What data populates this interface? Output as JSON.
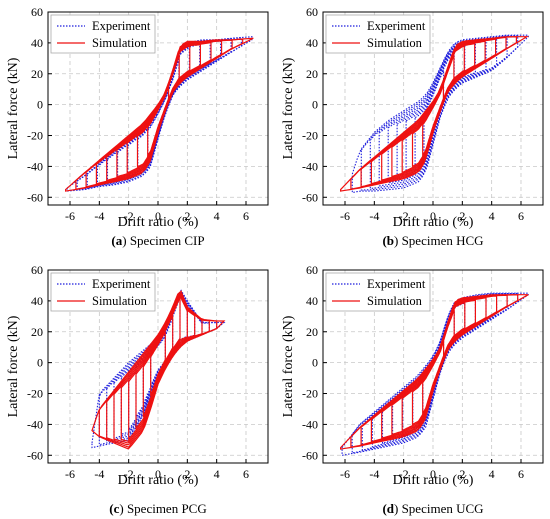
{
  "chart_data": [
    {
      "type": "line",
      "panel_label": "(a)",
      "caption": "Specimen CIP",
      "xlabel": "Drift ratio (%)",
      "ylabel": "Lateral force (kN)",
      "xlim": [
        -7.5,
        7.5
      ],
      "ylim": [
        -65,
        60
      ],
      "xticks": [
        -6,
        -4,
        -2,
        0,
        2,
        4,
        6
      ],
      "yticks": [
        -60,
        -40,
        -20,
        0,
        20,
        40,
        60
      ],
      "grid": true,
      "legend_position": "top-left",
      "series": [
        {
          "name": "Experiment",
          "style": "dotted",
          "color": "#1f1fdd",
          "envelope": {
            "x": [
              -6.2,
              -5,
              -4,
              -3,
              -2,
              -1,
              -0.5,
              0,
              0.5,
              1,
              1.5,
              2,
              3,
              4,
              5,
              6.4
            ],
            "y_upper": [
              -54,
              -46,
              -38,
              -30,
              -22,
              -14,
              -8,
              -2,
              6,
              18,
              36,
              40,
              42,
              42,
              43,
              44
            ],
            "y_lower": [
              -56,
              -55,
              -53,
              -52,
              -50,
              -46,
              -40,
              -22,
              -6,
              6,
              12,
              16,
              22,
              28,
              34,
              42
            ]
          }
        },
        {
          "name": "Simulation",
          "style": "solid",
          "color": "#ee1111",
          "envelope": {
            "x": [
              -6.3,
              -5,
              -4,
              -3,
              -2,
              -1,
              -0.5,
              0,
              0.5,
              1,
              1.5,
              2,
              3,
              4,
              5,
              6.5
            ],
            "y_upper": [
              -55,
              -44,
              -36,
              -28,
              -20,
              -12,
              -6,
              0,
              8,
              22,
              38,
              41,
              41,
              42,
              42,
              43
            ],
            "y_lower": [
              -56,
              -54,
              -52,
              -50,
              -48,
              -44,
              -36,
              -18,
              -4,
              8,
              14,
              18,
              24,
              30,
              36,
              43
            ]
          }
        }
      ]
    },
    {
      "type": "line",
      "panel_label": "(b)",
      "caption": "Specimen HCG",
      "xlabel": "Drift ratio (%)",
      "ylabel": "Lateral force (kN)",
      "xlim": [
        -7.5,
        7.5
      ],
      "ylim": [
        -65,
        60
      ],
      "xticks": [
        -6,
        -4,
        -2,
        0,
        2,
        4,
        6
      ],
      "yticks": [
        -60,
        -40,
        -20,
        0,
        20,
        40,
        60
      ],
      "grid": true,
      "legend_position": "top-left",
      "series": [
        {
          "name": "Experiment",
          "style": "dotted",
          "color": "#1f1fdd",
          "envelope": {
            "x": [
              -5.5,
              -5,
              -4,
              -3,
              -2,
              -1,
              -0.5,
              0,
              0.5,
              1,
              1.5,
              2,
              3,
              4,
              5,
              6.5
            ],
            "y_upper": [
              -45,
              -30,
              -18,
              -10,
              -4,
              2,
              6,
              14,
              24,
              34,
              40,
              42,
              43,
              44,
              45,
              45
            ],
            "y_lower": [
              -57,
              -56,
              -56,
              -55,
              -54,
              -50,
              -44,
              -26,
              -8,
              4,
              10,
              14,
              18,
              22,
              30,
              44
            ]
          }
        },
        {
          "name": "Simulation",
          "style": "solid",
          "color": "#ee1111",
          "envelope": {
            "x": [
              -6.3,
              -5,
              -4,
              -3,
              -2,
              -1,
              -0.5,
              0,
              0.5,
              1,
              1.5,
              2,
              3,
              4,
              5,
              6.4
            ],
            "y_upper": [
              -55,
              -42,
              -34,
              -26,
              -18,
              -10,
              -4,
              2,
              10,
              24,
              38,
              41,
              42,
              43,
              44,
              44
            ],
            "y_lower": [
              -56,
              -54,
              -52,
              -50,
              -48,
              -44,
              -36,
              -18,
              -4,
              8,
              14,
              18,
              24,
              30,
              36,
              44
            ]
          }
        }
      ]
    },
    {
      "type": "line",
      "panel_label": "(c)",
      "caption": "Specimen PCG",
      "xlabel": "Drift ratio (%)",
      "ylabel": "Lateral force (kN)",
      "xlim": [
        -7.5,
        7.5
      ],
      "ylim": [
        -65,
        60
      ],
      "xticks": [
        -6,
        -4,
        -2,
        0,
        2,
        4,
        6
      ],
      "yticks": [
        -60,
        -40,
        -20,
        0,
        20,
        40,
        60
      ],
      "grid": true,
      "legend_position": "top-left",
      "series": [
        {
          "name": "Experiment",
          "style": "dotted",
          "color": "#1f1fdd",
          "envelope": {
            "x": [
              -4.5,
              -4,
              -3,
              -2,
              -1,
              -0.5,
              0,
              0.5,
              1,
              1.5,
              2,
              3,
              4,
              4.5
            ],
            "y_upper": [
              -52,
              -20,
              -10,
              0,
              8,
              12,
              16,
              22,
              34,
              48,
              40,
              26,
              26,
              26
            ],
            "y_lower": [
              -55,
              -54,
              -52,
              -50,
              -34,
              -22,
              -10,
              -4,
              4,
              10,
              14,
              18,
              22,
              26
            ]
          }
        },
        {
          "name": "Simulation",
          "style": "solid",
          "color": "#ee1111",
          "envelope": {
            "x": [
              -4.5,
              -4,
              -3,
              -2,
              -1,
              -0.5,
              0,
              0.5,
              1,
              1.5,
              2,
              3,
              4,
              4.5
            ],
            "y_upper": [
              -44,
              -30,
              -18,
              -6,
              6,
              12,
              18,
              26,
              36,
              48,
              36,
              28,
              27,
              27
            ],
            "y_lower": [
              -44,
              -48,
              -52,
              -56,
              -44,
              -30,
              -14,
              -4,
              4,
              10,
              14,
              18,
              22,
              27
            ]
          }
        }
      ]
    },
    {
      "type": "line",
      "panel_label": "(d)",
      "caption": "Specimen UCG",
      "xlabel": "Drift ratio (%)",
      "ylabel": "Lateral force (kN)",
      "xlim": [
        -7.5,
        7.5
      ],
      "ylim": [
        -65,
        60
      ],
      "xticks": [
        -6,
        -4,
        -2,
        0,
        2,
        4,
        6
      ],
      "yticks": [
        -60,
        -40,
        -20,
        0,
        20,
        40,
        60
      ],
      "grid": true,
      "legend_position": "top-left",
      "series": [
        {
          "name": "Experiment",
          "style": "dotted",
          "color": "#1f1fdd",
          "envelope": {
            "x": [
              -6.2,
              -5,
              -4,
              -3,
              -2,
              -1,
              -0.5,
              0,
              0.5,
              1,
              1.5,
              2,
              3,
              4,
              5,
              6.5
            ],
            "y_upper": [
              -55,
              -40,
              -32,
              -24,
              -16,
              -8,
              -2,
              4,
              14,
              30,
              40,
              42,
              44,
              45,
              45,
              45
            ],
            "y_lower": [
              -60,
              -58,
              -56,
              -54,
              -52,
              -48,
              -42,
              -24,
              -6,
              6,
              12,
              16,
              22,
              28,
              34,
              44
            ]
          }
        },
        {
          "name": "Simulation",
          "style": "solid",
          "color": "#ee1111",
          "envelope": {
            "x": [
              -6.3,
              -5,
              -4,
              -3,
              -2,
              -1,
              -0.5,
              0,
              0.5,
              1,
              1.5,
              2,
              3,
              4,
              5,
              6.5
            ],
            "y_upper": [
              -55,
              -42,
              -34,
              -26,
              -18,
              -10,
              -4,
              2,
              10,
              26,
              40,
              42,
              43,
              44,
              44,
              44
            ],
            "y_lower": [
              -56,
              -54,
              -52,
              -50,
              -48,
              -44,
              -36,
              -18,
              -4,
              8,
              14,
              18,
              24,
              30,
              36,
              44
            ]
          }
        }
      ]
    }
  ]
}
